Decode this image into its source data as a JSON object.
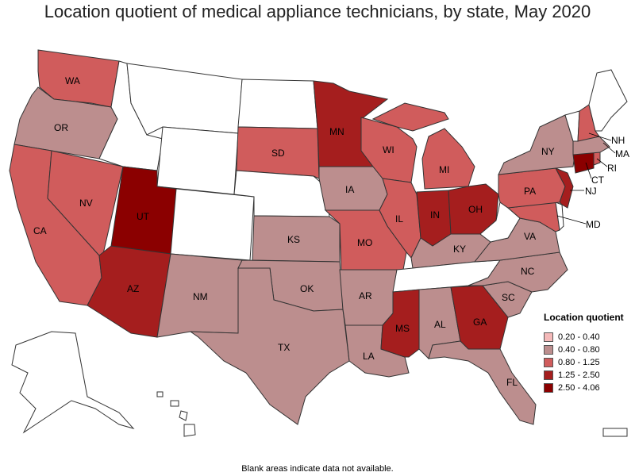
{
  "title": "Location quotient of medical appliance technicians, by state, May 2020",
  "footnote": "Blank areas indicate data not available.",
  "legend": {
    "title": "Location quotient",
    "items": [
      {
        "label": "0.20 - 0.40",
        "color": "#f4b9b9"
      },
      {
        "label": "0.40 - 0.80",
        "color": "#bc8e8e"
      },
      {
        "label": "0.80 - 1.25",
        "color": "#d05c5c"
      },
      {
        "label": "1.25 - 2.50",
        "color": "#a51e1e"
      },
      {
        "label": "2.50 - 4.06",
        "color": "#8b0000"
      }
    ]
  },
  "colors": {
    "blank": "#ffffff",
    "c1": "#f4b9b9",
    "c2": "#bc8e8e",
    "c3": "#d05c5c",
    "c4": "#a51e1e",
    "c5": "#8b0000"
  },
  "chart_data": {
    "type": "choropleth",
    "title": "Location quotient of medical appliance technicians, by state, May 2020",
    "states": [
      {
        "abbr": "WA",
        "class": "0.80 - 1.25"
      },
      {
        "abbr": "OR",
        "class": "0.40 - 0.80"
      },
      {
        "abbr": "CA",
        "class": "0.80 - 1.25"
      },
      {
        "abbr": "NV",
        "class": "0.80 - 1.25"
      },
      {
        "abbr": "UT",
        "class": "2.50 - 4.06"
      },
      {
        "abbr": "AZ",
        "class": "1.25 - 2.50"
      },
      {
        "abbr": "NM",
        "class": "0.40 - 0.80"
      },
      {
        "abbr": "TX",
        "class": "0.40 - 0.80"
      },
      {
        "abbr": "OK",
        "class": "0.40 - 0.80"
      },
      {
        "abbr": "KS",
        "class": "0.40 - 0.80"
      },
      {
        "abbr": "SD",
        "class": "0.80 - 1.25"
      },
      {
        "abbr": "MN",
        "class": "1.25 - 2.50"
      },
      {
        "abbr": "IA",
        "class": "0.40 - 0.80"
      },
      {
        "abbr": "MO",
        "class": "0.80 - 1.25"
      },
      {
        "abbr": "AR",
        "class": "0.40 - 0.80"
      },
      {
        "abbr": "LA",
        "class": "0.40 - 0.80"
      },
      {
        "abbr": "WI",
        "class": "0.80 - 1.25"
      },
      {
        "abbr": "IL",
        "class": "0.80 - 1.25"
      },
      {
        "abbr": "MI",
        "class": "0.80 - 1.25"
      },
      {
        "abbr": "IN",
        "class": "1.25 - 2.50"
      },
      {
        "abbr": "OH",
        "class": "1.25 - 2.50"
      },
      {
        "abbr": "KY",
        "class": "0.40 - 0.80"
      },
      {
        "abbr": "MS",
        "class": "1.25 - 2.50"
      },
      {
        "abbr": "AL",
        "class": "0.40 - 0.80"
      },
      {
        "abbr": "GA",
        "class": "1.25 - 2.50"
      },
      {
        "abbr": "FL",
        "class": "0.40 - 0.80"
      },
      {
        "abbr": "SC",
        "class": "0.40 - 0.80"
      },
      {
        "abbr": "NC",
        "class": "0.40 - 0.80"
      },
      {
        "abbr": "VA",
        "class": "0.40 - 0.80"
      },
      {
        "abbr": "PA",
        "class": "0.80 - 1.25"
      },
      {
        "abbr": "NY",
        "class": "0.40 - 0.80"
      },
      {
        "abbr": "NJ",
        "class": "1.25 - 2.50"
      },
      {
        "abbr": "MD",
        "class": "0.80 - 1.25"
      },
      {
        "abbr": "CT",
        "class": "2.50 - 4.06"
      },
      {
        "abbr": "RI",
        "class": "0.80 - 1.25"
      },
      {
        "abbr": "MA",
        "class": "0.40 - 0.80"
      },
      {
        "abbr": "NH",
        "class": "0.80 - 1.25"
      },
      {
        "abbr": "AK",
        "class": "blank"
      },
      {
        "abbr": "HI",
        "class": "blank"
      },
      {
        "abbr": "MT",
        "class": "blank"
      },
      {
        "abbr": "ID",
        "class": "blank"
      },
      {
        "abbr": "WY",
        "class": "blank"
      },
      {
        "abbr": "CO",
        "class": "blank"
      },
      {
        "abbr": "ND",
        "class": "blank"
      },
      {
        "abbr": "NE",
        "class": "blank"
      },
      {
        "abbr": "TN",
        "class": "blank"
      },
      {
        "abbr": "WV",
        "class": "blank"
      },
      {
        "abbr": "VT",
        "class": "blank"
      },
      {
        "abbr": "ME",
        "class": "blank"
      },
      {
        "abbr": "DE",
        "class": "blank"
      }
    ]
  },
  "labels": {
    "WA": "WA",
    "OR": "OR",
    "CA": "CA",
    "NV": "NV",
    "UT": "UT",
    "AZ": "AZ",
    "NM": "NM",
    "TX": "TX",
    "OK": "OK",
    "KS": "KS",
    "SD": "SD",
    "MN": "MN",
    "IA": "IA",
    "MO": "MO",
    "AR": "AR",
    "LA": "LA",
    "WI": "WI",
    "IL": "IL",
    "MI": "MI",
    "IN": "IN",
    "OH": "OH",
    "KY": "KY",
    "MS": "MS",
    "AL": "AL",
    "GA": "GA",
    "FL": "FL",
    "SC": "SC",
    "NC": "NC",
    "VA": "VA",
    "PA": "PA",
    "NY": "NY",
    "NJ": "NJ",
    "MD": "MD",
    "CT": "CT",
    "RI": "RI",
    "MA": "MA",
    "NH": "NH"
  }
}
